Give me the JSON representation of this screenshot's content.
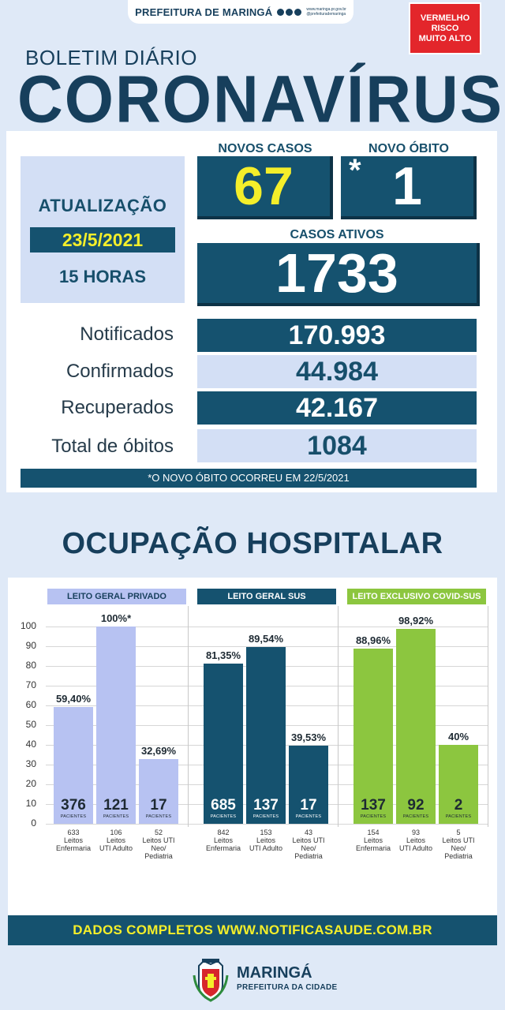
{
  "header": {
    "org": "PREFEITURA DE MARINGÁ",
    "site": "www.maringa.pr.gov.br",
    "handle": "@prefeiturademaringa",
    "risk_lines": [
      "VERMELHO",
      "RISCO",
      "MUITO ALTO"
    ],
    "risk_color": "#e3262b"
  },
  "title": {
    "small": "BOLETIM DIÁRIO",
    "big": "CORONAVÍRUS"
  },
  "update": {
    "label": "ATUALIZAÇÃO",
    "date": "23/5/2021",
    "hour": "15 HORAS"
  },
  "new_cases": {
    "label": "NOVOS CASOS",
    "value": "67"
  },
  "new_death": {
    "label": "NOVO ÓBITO",
    "mark": "*",
    "value": "1"
  },
  "active": {
    "label": "CASOS ATIVOS",
    "value": "1733"
  },
  "stats": [
    {
      "label": "Notificados",
      "value": "170.993"
    },
    {
      "label": "Confirmados",
      "value": "44.984"
    },
    {
      "label": "Recuperados",
      "value": "42.167"
    },
    {
      "label": "Total de óbitos",
      "value": "1084"
    }
  ],
  "note": "*O NOVO ÓBITO OCORREU EM 22/5/2021",
  "hospital_title": "OCUPAÇÃO HOSPITALAR",
  "patients_label": "PACIENTES",
  "colors": {
    "navy": "#15526f",
    "private": "#b7c2f2",
    "sus": "#15526f",
    "covid": "#8cc63f",
    "yellow": "#f4ee2a"
  },
  "chart_data": {
    "type": "bar",
    "ylim": [
      0,
      100
    ],
    "yticks": [
      0,
      10,
      20,
      30,
      40,
      50,
      60,
      70,
      80,
      90,
      100
    ],
    "groups": [
      {
        "name": "LEITO GERAL PRIVADO",
        "color": "#b7c2f2",
        "head_text": "#173f5c",
        "bars": [
          {
            "pct_label": "59,40%",
            "value": 59.4,
            "patients": "376",
            "beds": "633",
            "category": [
              "Leitos",
              "Enfermaria"
            ]
          },
          {
            "pct_label": "100%*",
            "value": 100,
            "patients": "121",
            "beds": "106",
            "category": [
              "Leitos",
              "UTI Adulto"
            ]
          },
          {
            "pct_label": "32,69%",
            "value": 32.69,
            "patients": "17",
            "beds": "52",
            "category": [
              "Leitos UTI",
              "Neo/",
              "Pediatria"
            ]
          }
        ]
      },
      {
        "name": "LEITO GERAL SUS",
        "color": "#15526f",
        "head_text": "#ffffff",
        "bars": [
          {
            "pct_label": "81,35%",
            "value": 81.35,
            "patients": "685",
            "beds": "842",
            "category": [
              "Leitos",
              "Enfermaria"
            ]
          },
          {
            "pct_label": "89,54%",
            "value": 89.54,
            "patients": "137",
            "beds": "153",
            "category": [
              "Leitos",
              "UTI Adulto"
            ]
          },
          {
            "pct_label": "39,53%",
            "value": 39.53,
            "patients": "17",
            "beds": "43",
            "category": [
              "Leitos UTI",
              "Neo/",
              "Pediatria"
            ]
          }
        ]
      },
      {
        "name": "LEITO EXCLUSIVO COVID-SUS",
        "color": "#8cc63f",
        "head_text": "#ffffff",
        "bars": [
          {
            "pct_label": "88,96%",
            "value": 88.96,
            "patients": "137",
            "beds": "154",
            "category": [
              "Leitos",
              "Enfermaria"
            ]
          },
          {
            "pct_label": "98,92%",
            "value": 98.92,
            "patients": "92",
            "beds": "93",
            "category": [
              "Leitos",
              "UTI Adulto"
            ]
          },
          {
            "pct_label": "40%",
            "value": 40,
            "patients": "2",
            "beds": "5",
            "category": [
              "Leitos UTI",
              "Neo/",
              "Pediatria"
            ]
          }
        ]
      }
    ]
  },
  "footer": {
    "link": "DADOS COMPLETOS  WWW.NOTIFICASAUDE.COM.BR",
    "city": "MARINGÁ",
    "sub": "PREFEITURA DA CIDADE"
  }
}
